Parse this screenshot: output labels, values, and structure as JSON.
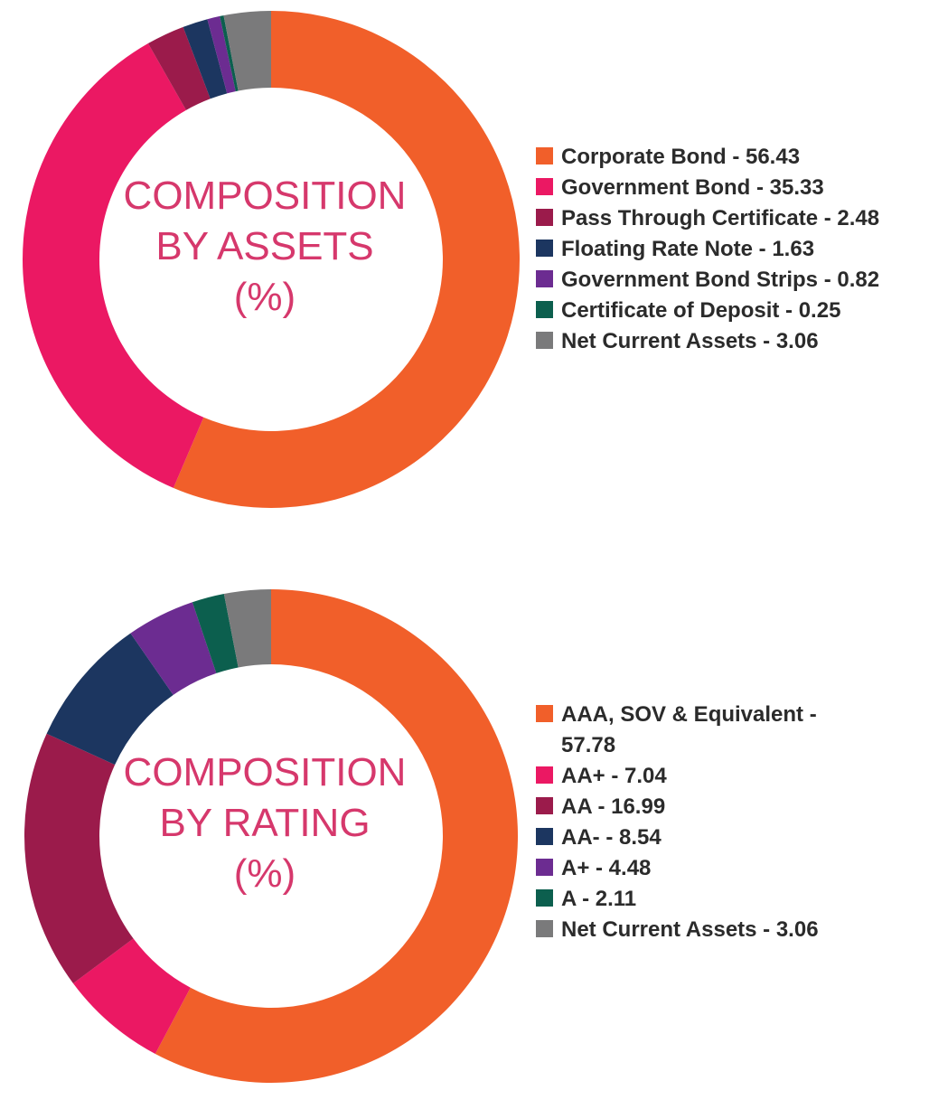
{
  "chart_data": [
    {
      "type": "pie",
      "donut": true,
      "center_text": [
        "COMPOSITION",
        "BY ASSETS",
        "(%)"
      ],
      "legend_position": "right",
      "slices": [
        {
          "label": "Corporate Bond - 56.43",
          "value": 56.43,
          "color": "#f15f2a"
        },
        {
          "label": "Government Bond - 35.33",
          "value": 35.33,
          "color": "#eb1863"
        },
        {
          "label": "Pass Through Certificate - 2.48",
          "value": 2.48,
          "color": "#9b1b4b"
        },
        {
          "label": "Floating Rate Note - 1.63",
          "value": 1.63,
          "color": "#1c3660"
        },
        {
          "label": "Government Bond Strips - 0.82",
          "value": 0.82,
          "color": "#6c2c91"
        },
        {
          "label": "Certificate of Deposit - 0.25",
          "value": 0.25,
          "color": "#0c5f4e"
        },
        {
          "label": "Net Current Assets - 3.06",
          "value": 3.06,
          "color": "#7a7a7b"
        }
      ]
    },
    {
      "type": "pie",
      "donut": true,
      "center_text": [
        "COMPOSITION",
        "BY RATING",
        "(%)"
      ],
      "legend_position": "right",
      "slices": [
        {
          "label": "AAA, SOV & Equivalent - 57.78",
          "value": 57.78,
          "color": "#f15f2a"
        },
        {
          "label": "AA+ - 7.04",
          "value": 7.04,
          "color": "#eb1863"
        },
        {
          "label": "AA - 16.99",
          "value": 16.99,
          "color": "#9b1b4b"
        },
        {
          "label": "AA- - 8.54",
          "value": 8.54,
          "color": "#1c3660"
        },
        {
          "label": "A+ - 4.48",
          "value": 4.48,
          "color": "#6c2c91"
        },
        {
          "label": "A - 2.11",
          "value": 2.11,
          "color": "#0c5f4e"
        },
        {
          "label": "Net Current Assets - 3.06",
          "value": 3.06,
          "color": "#7a7a7b"
        }
      ]
    }
  ],
  "colors": {
    "title": "#d6386c",
    "legend_text": "#2b2b2b"
  }
}
